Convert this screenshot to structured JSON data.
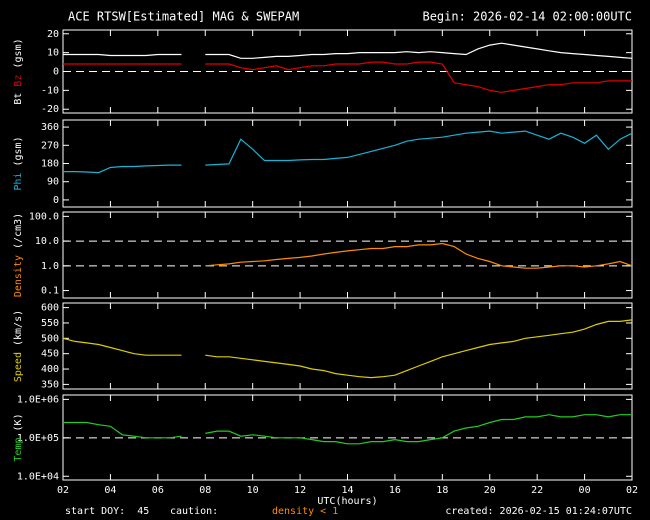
{
  "header": {
    "title": "ACE RTSW[Estimated] MAG & SWEPAM",
    "begin": "Begin: 2026-02-14 02:00:00UTC"
  },
  "footer": {
    "start": "start DOY:  45",
    "caution": "caution:",
    "density_note": "density < 1",
    "created": "created: 2026-02-15 01:24:07UTC"
  },
  "chart_data": [
    {
      "type": "line",
      "ylabel": "(gsm)",
      "xlim": [
        0,
        24
      ],
      "ylim": [
        -22,
        22
      ],
      "yticks": [
        -20,
        -10,
        0,
        10,
        20
      ],
      "hlines": [
        0
      ],
      "x": [
        0,
        0.5,
        1,
        1.5,
        2,
        2.5,
        3,
        3.5,
        4,
        4.5,
        5,
        5.5,
        6,
        6.5,
        7,
        7.5,
        8,
        8.5,
        9,
        9.5,
        10,
        10.5,
        11,
        11.5,
        12,
        12.5,
        13,
        13.5,
        14,
        14.5,
        15,
        15.5,
        16,
        16.5,
        17,
        17.5,
        18,
        18.5,
        19,
        19.5,
        20,
        20.5,
        21,
        21.5,
        22,
        22.5,
        23,
        23.5,
        24
      ],
      "series": [
        {
          "name": "Bt",
          "color": "#ffffff",
          "values": [
            9,
            9,
            9,
            9,
            8.5,
            8.5,
            8.5,
            8.5,
            9,
            9,
            9,
            null,
            9,
            9,
            9,
            7,
            7,
            7.5,
            8,
            8,
            8.5,
            9,
            9,
            9.5,
            9.5,
            10,
            10,
            10,
            10,
            10.5,
            10,
            10.5,
            10,
            9.5,
            9,
            12,
            14,
            15,
            14,
            13,
            12,
            11,
            10,
            9.5,
            9,
            8.5,
            8,
            7.5,
            7
          ]
        },
        {
          "name": "Bz",
          "color": "#e00000",
          "values": [
            4,
            4,
            4,
            4,
            4,
            4,
            4,
            4,
            4,
            4,
            4,
            null,
            4,
            4,
            4,
            2,
            1,
            2,
            3,
            1,
            2,
            3,
            3,
            4,
            4,
            4,
            5,
            5,
            4,
            4,
            5,
            5,
            4,
            -6,
            -7,
            -8,
            -10,
            -11,
            -10,
            -9,
            -8,
            -7,
            -7,
            -6,
            -6,
            -6,
            -5,
            -5,
            -5
          ]
        }
      ]
    },
    {
      "type": "line",
      "ylabel": "(gsm)",
      "xlim": [
        0,
        24
      ],
      "ylim": [
        -35,
        395
      ],
      "yticks": [
        0,
        90,
        180,
        270,
        360
      ],
      "hlines": [],
      "x": [
        0,
        0.5,
        1,
        1.5,
        2,
        2.5,
        3,
        3.5,
        4,
        4.5,
        5,
        5.5,
        6,
        6.5,
        7,
        7.5,
        8,
        8.5,
        9,
        9.5,
        10,
        10.5,
        11,
        11.5,
        12,
        12.5,
        13,
        13.5,
        14,
        14.5,
        15,
        15.5,
        16,
        16.5,
        17,
        17.5,
        18,
        18.5,
        19,
        19.5,
        20,
        20.5,
        21,
        21.5,
        22,
        22.5,
        23,
        23.5,
        24
      ],
      "series": [
        {
          "name": "Phi",
          "color": "#19b3d6",
          "values": [
            140,
            140,
            138,
            135,
            160,
            165,
            165,
            168,
            170,
            172,
            172,
            null,
            172,
            175,
            178,
            300,
            250,
            195,
            195,
            195,
            198,
            200,
            200,
            205,
            210,
            225,
            240,
            255,
            270,
            290,
            300,
            305,
            310,
            320,
            330,
            335,
            340,
            330,
            335,
            340,
            320,
            300,
            330,
            310,
            280,
            320,
            250,
            300,
            330
          ]
        }
      ]
    },
    {
      "type": "line",
      "ylabel": "(/cm3)",
      "log_scale": true,
      "xlim": [
        0,
        24
      ],
      "ylim": [
        0.05,
        150
      ],
      "yticks": [
        0.1,
        {
          "value": 1,
          "label": "1.0"
        },
        {
          "value": 10,
          "label": "10.0"
        },
        {
          "value": 100,
          "label": "100.0"
        }
      ],
      "hlines": [
        1,
        10
      ],
      "x": [
        0,
        0.5,
        1,
        1.5,
        2,
        2.5,
        3,
        3.5,
        4,
        4.5,
        5,
        5.5,
        6,
        6.5,
        7,
        7.5,
        8,
        8.5,
        9,
        9.5,
        10,
        10.5,
        11,
        11.5,
        12,
        12.5,
        13,
        13.5,
        14,
        14.5,
        15,
        15.5,
        16,
        16.5,
        17,
        17.5,
        18,
        18.5,
        19,
        19.5,
        20,
        20.5,
        21,
        21.5,
        22,
        22.5,
        23,
        23.5,
        24
      ],
      "series": [
        {
          "name": "Density",
          "color": "#ff8c00",
          "values": [
            null,
            null,
            null,
            null,
            null,
            null,
            null,
            null,
            null,
            null,
            null,
            null,
            1.0,
            1.1,
            1.2,
            1.4,
            1.5,
            1.6,
            1.8,
            2,
            2.2,
            2.5,
            3,
            3.5,
            4,
            4.5,
            5,
            5,
            6,
            6,
            7,
            7,
            8,
            6,
            3,
            2,
            1.5,
            1,
            0.9,
            0.8,
            0.8,
            0.9,
            1,
            1,
            0.9,
            1,
            1.2,
            1.5,
            1
          ]
        }
      ]
    },
    {
      "type": "line",
      "ylabel": "(km/s)",
      "xlim": [
        0,
        24
      ],
      "ylim": [
        335,
        615
      ],
      "yticks": [
        350,
        400,
        450,
        500,
        550,
        600
      ],
      "hlines": [],
      "x": [
        0,
        0.5,
        1,
        1.5,
        2,
        2.5,
        3,
        3.5,
        4,
        4.5,
        5,
        5.5,
        6,
        6.5,
        7,
        7.5,
        8,
        8.5,
        9,
        9.5,
        10,
        10.5,
        11,
        11.5,
        12,
        12.5,
        13,
        13.5,
        14,
        14.5,
        15,
        15.5,
        16,
        16.5,
        17,
        17.5,
        18,
        18.5,
        19,
        19.5,
        20,
        20.5,
        21,
        21.5,
        22,
        22.5,
        23,
        23.5,
        24
      ],
      "series": [
        {
          "name": "Speed",
          "color": "#ddcc00",
          "values": [
            500,
            490,
            485,
            480,
            470,
            460,
            450,
            445,
            445,
            445,
            445,
            null,
            445,
            440,
            440,
            435,
            430,
            425,
            420,
            415,
            410,
            400,
            395,
            385,
            380,
            375,
            372,
            375,
            380,
            395,
            410,
            425,
            440,
            450,
            460,
            470,
            480,
            485,
            490,
            500,
            505,
            510,
            515,
            520,
            530,
            545,
            555,
            555,
            560
          ]
        }
      ]
    },
    {
      "type": "line",
      "ylabel": "(K)",
      "log_scale": true,
      "xlim": [
        0,
        24
      ],
      "ylim": [
        8000,
        1300000
      ],
      "yticks": [
        {
          "value": 10000,
          "label": "1.0E+04"
        },
        {
          "value": 100000,
          "label": "1.0E+05"
        },
        {
          "value": 1000000,
          "label": "1.0E+06"
        }
      ],
      "hlines": [
        100000
      ],
      "xlabel": "UTC(hours)",
      "xticks": [
        {
          "value": 0,
          "label": "02"
        },
        {
          "value": 2,
          "label": "04"
        },
        {
          "value": 4,
          "label": "06"
        },
        {
          "value": 6,
          "label": "08"
        },
        {
          "value": 8,
          "label": "10"
        },
        {
          "value": 10,
          "label": "12"
        },
        {
          "value": 12,
          "label": "14"
        },
        {
          "value": 14,
          "label": "16"
        },
        {
          "value": 16,
          "label": "18"
        },
        {
          "value": 18,
          "label": "20"
        },
        {
          "value": 20,
          "label": "22"
        },
        {
          "value": 22,
          "label": "00"
        },
        {
          "value": 24,
          "label": "02"
        }
      ],
      "x": [
        0,
        0.5,
        1,
        1.5,
        2,
        2.5,
        3,
        3.5,
        4,
        4.5,
        5,
        5.5,
        6,
        6.5,
        7,
        7.5,
        8,
        8.5,
        9,
        9.5,
        10,
        10.5,
        11,
        11.5,
        12,
        12.5,
        13,
        13.5,
        14,
        14.5,
        15,
        15.5,
        16,
        16.5,
        17,
        17.5,
        18,
        18.5,
        19,
        19.5,
        20,
        20.5,
        21,
        21.5,
        22,
        22.5,
        23,
        23.5,
        24
      ],
      "series": [
        {
          "name": "Temp",
          "color": "#22cc22",
          "values": [
            250000,
            250000,
            250000,
            220000,
            200000,
            120000,
            110000,
            100000,
            100000,
            100000,
            110000,
            null,
            130000,
            150000,
            150000,
            110000,
            120000,
            110000,
            100000,
            100000,
            100000,
            90000,
            80000,
            80000,
            70000,
            70000,
            80000,
            80000,
            90000,
            80000,
            80000,
            90000,
            100000,
            150000,
            180000,
            200000,
            250000,
            300000,
            300000,
            350000,
            350000,
            400000,
            350000,
            350000,
            400000,
            400000,
            350000,
            400000,
            400000
          ]
        }
      ]
    }
  ]
}
